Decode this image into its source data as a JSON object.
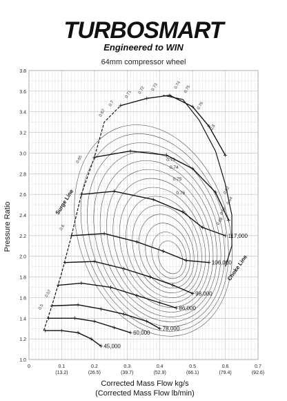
{
  "brand": {
    "name": "TURBOSMART",
    "tagline": "Engineered to WIN"
  },
  "chart_data": {
    "type": "line",
    "title": "64mm compressor wheel",
    "xlabel": "Corrected Mass Flow kg/s",
    "xlabel2": "(Corrected Mass Flow lb/min)",
    "ylabel": "Pressure Ratio",
    "xlim": [
      0,
      0.7
    ],
    "ylim": [
      1.0,
      3.8
    ],
    "grid": true,
    "x_ticks": [
      {
        "v": 0,
        "label": "0",
        "sub": ""
      },
      {
        "v": 0.1,
        "label": "0.1",
        "sub": "(13.2)"
      },
      {
        "v": 0.2,
        "label": "0.2",
        "sub": "(26.5)"
      },
      {
        "v": 0.3,
        "label": "0.3",
        "sub": "(39.7)"
      },
      {
        "v": 0.4,
        "label": "0.4",
        "sub": "(52.9)"
      },
      {
        "v": 0.5,
        "label": "0.5",
        "sub": "(66.1)"
      },
      {
        "v": 0.6,
        "label": "0.6",
        "sub": "(79.4)"
      },
      {
        "v": 0.7,
        "label": "0.7",
        "sub": "(92.6)"
      }
    ],
    "y_ticks": [
      "1.0",
      "1.2",
      "1.4",
      "1.6",
      "1.8",
      "2.0",
      "2.2",
      "2.4",
      "2.6",
      "2.8",
      "3.0",
      "3.2",
      "3.4",
      "3.6",
      "3.8"
    ],
    "surge_line": {
      "label": "Surge Line",
      "points": [
        [
          0.045,
          1.28
        ],
        [
          0.07,
          1.52
        ],
        [
          0.1,
          1.84
        ],
        [
          0.13,
          2.2
        ],
        [
          0.16,
          2.6
        ],
        [
          0.2,
          2.96
        ],
        [
          0.23,
          3.3
        ],
        [
          0.28,
          3.46
        ]
      ]
    },
    "choke_line": {
      "label": "Choke Line",
      "points": [
        [
          0.41,
          3.56
        ],
        [
          0.47,
          3.52
        ],
        [
          0.52,
          3.32
        ],
        [
          0.57,
          3.02
        ],
        [
          0.6,
          2.7
        ],
        [
          0.62,
          2.4
        ],
        [
          0.62,
          2.1
        ],
        [
          0.6,
          1.9
        ]
      ]
    },
    "speed_lines": [
      {
        "label": "45,000",
        "points": [
          [
            0.05,
            1.28
          ],
          [
            0.1,
            1.28
          ],
          [
            0.15,
            1.26
          ],
          [
            0.19,
            1.2
          ],
          [
            0.22,
            1.13
          ]
        ]
      },
      {
        "label": "60,000",
        "points": [
          [
            0.06,
            1.4
          ],
          [
            0.14,
            1.4
          ],
          [
            0.2,
            1.37
          ],
          [
            0.26,
            1.31
          ],
          [
            0.31,
            1.26
          ]
        ]
      },
      {
        "label": "78,000",
        "points": [
          [
            0.07,
            1.52
          ],
          [
            0.15,
            1.53
          ],
          [
            0.22,
            1.49
          ],
          [
            0.29,
            1.44
          ],
          [
            0.36,
            1.37
          ],
          [
            0.4,
            1.3
          ]
        ]
      },
      {
        "label": "86,000",
        "points": [
          [
            0.09,
            1.72
          ],
          [
            0.16,
            1.74
          ],
          [
            0.25,
            1.7
          ],
          [
            0.33,
            1.62
          ],
          [
            0.4,
            1.55
          ],
          [
            0.45,
            1.5
          ]
        ]
      },
      {
        "label": "98,000",
        "points": [
          [
            0.11,
            1.94
          ],
          [
            0.2,
            1.95
          ],
          [
            0.29,
            1.88
          ],
          [
            0.37,
            1.8
          ],
          [
            0.44,
            1.72
          ],
          [
            0.5,
            1.64
          ]
        ]
      },
      {
        "label": "106,000",
        "points": [
          [
            0.13,
            2.2
          ],
          [
            0.23,
            2.22
          ],
          [
            0.33,
            2.14
          ],
          [
            0.41,
            2.05
          ],
          [
            0.48,
            1.96
          ],
          [
            0.55,
            1.94
          ]
        ]
      },
      {
        "label": "117,000",
        "points": [
          [
            0.16,
            2.6
          ],
          [
            0.26,
            2.63
          ],
          [
            0.38,
            2.55
          ],
          [
            0.47,
            2.43
          ],
          [
            0.53,
            2.28
          ],
          [
            0.6,
            2.2
          ]
        ]
      },
      {
        "label": "",
        "points": [
          [
            0.2,
            2.96
          ],
          [
            0.31,
            3.02
          ],
          [
            0.42,
            2.98
          ],
          [
            0.5,
            2.85
          ],
          [
            0.57,
            2.62
          ],
          [
            0.61,
            2.35
          ]
        ]
      },
      {
        "label": "",
        "points": [
          [
            0.28,
            3.46
          ],
          [
            0.36,
            3.53
          ],
          [
            0.43,
            3.56
          ],
          [
            0.5,
            3.45
          ],
          [
            0.55,
            3.26
          ],
          [
            0.6,
            2.98
          ]
        ]
      }
    ],
    "efficiency_labels": [
      "0.5",
      "0.57",
      "0.6",
      "0.65",
      "0.67",
      "0.7",
      "0.71",
      "0.72",
      "0.73",
      "0.74",
      "0.75",
      "0.76",
      "0.8",
      "0.62",
      "0.64",
      "0.66",
      "0.68"
    ],
    "efficiency_islands": [
      {
        "label": "0.73",
        "cx": 0.4,
        "cy": 2.4,
        "rx": 0.21,
        "ry": 0.95
      },
      {
        "label": "0.74",
        "cx": 0.41,
        "cy": 2.38,
        "rx": 0.18,
        "ry": 0.85
      },
      {
        "label": "0.75",
        "cx": 0.42,
        "cy": 2.35,
        "rx": 0.14,
        "ry": 0.7
      },
      {
        "label": "0.76",
        "cx": 0.43,
        "cy": 2.3,
        "rx": 0.09,
        "ry": 0.55
      }
    ]
  }
}
